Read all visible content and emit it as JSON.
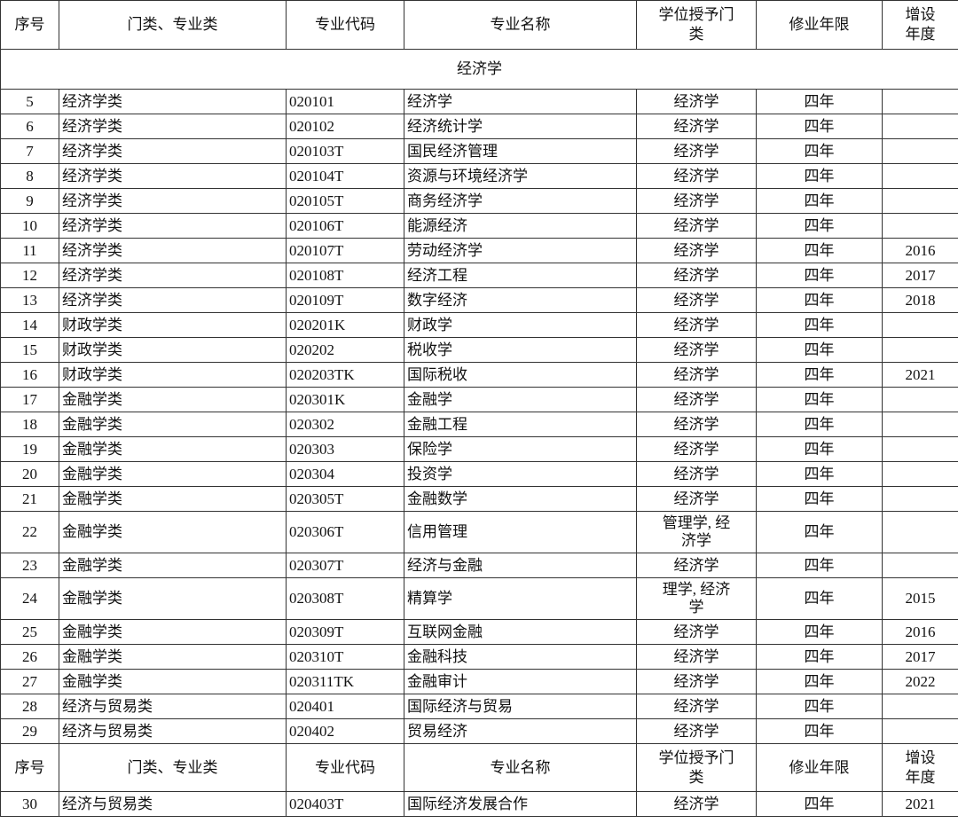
{
  "headers": [
    "序号",
    "门类、专业类",
    "专业代码",
    "专业名称",
    "学位授予门类",
    "修业年限",
    "增设年度"
  ],
  "section_title": "经济学",
  "rows_a": [
    [
      "5",
      "经济学类",
      "020101",
      "经济学",
      "经济学",
      "四年",
      ""
    ],
    [
      "6",
      "经济学类",
      "020102",
      "经济统计学",
      "经济学",
      "四年",
      ""
    ],
    [
      "7",
      "经济学类",
      "020103T",
      "国民经济管理",
      "经济学",
      "四年",
      ""
    ],
    [
      "8",
      "经济学类",
      "020104T",
      "资源与环境经济学",
      "经济学",
      "四年",
      ""
    ],
    [
      "9",
      "经济学类",
      "020105T",
      "商务经济学",
      "经济学",
      "四年",
      ""
    ],
    [
      "10",
      "经济学类",
      "020106T",
      "能源经济",
      "经济学",
      "四年",
      ""
    ],
    [
      "11",
      "经济学类",
      "020107T",
      "劳动经济学",
      "经济学",
      "四年",
      "2016"
    ],
    [
      "12",
      "经济学类",
      "020108T",
      "经济工程",
      "经济学",
      "四年",
      "2017"
    ],
    [
      "13",
      "经济学类",
      "020109T",
      "数字经济",
      "经济学",
      "四年",
      "2018"
    ],
    [
      "14",
      "财政学类",
      "020201K",
      "财政学",
      "经济学",
      "四年",
      ""
    ],
    [
      "15",
      "财政学类",
      "020202",
      "税收学",
      "经济学",
      "四年",
      ""
    ],
    [
      "16",
      "财政学类",
      "020203TK",
      "国际税收",
      "经济学",
      "四年",
      "2021"
    ],
    [
      "17",
      "金融学类",
      "020301K",
      "金融学",
      "经济学",
      "四年",
      ""
    ],
    [
      "18",
      "金融学类",
      "020302",
      "金融工程",
      "经济学",
      "四年",
      ""
    ],
    [
      "19",
      "金融学类",
      "020303",
      "保险学",
      "经济学",
      "四年",
      ""
    ],
    [
      "20",
      "金融学类",
      "020304",
      "投资学",
      "经济学",
      "四年",
      ""
    ],
    [
      "21",
      "金融学类",
      "020305T",
      "金融数学",
      "经济学",
      "四年",
      ""
    ],
    [
      "22",
      "金融学类",
      "020306T",
      "信用管理",
      "管理学, 经济学",
      "四年",
      ""
    ],
    [
      "23",
      "金融学类",
      "020307T",
      "经济与金融",
      "经济学",
      "四年",
      ""
    ],
    [
      "24",
      "金融学类",
      "020308T",
      "精算学",
      "理学, 经济学",
      "四年",
      "2015"
    ],
    [
      "25",
      "金融学类",
      "020309T",
      "互联网金融",
      "经济学",
      "四年",
      "2016"
    ],
    [
      "26",
      "金融学类",
      "020310T",
      "金融科技",
      "经济学",
      "四年",
      "2017"
    ],
    [
      "27",
      "金融学类",
      "020311TK",
      "金融审计",
      "经济学",
      "四年",
      "2022"
    ],
    [
      "28",
      "经济与贸易类",
      "020401",
      "国际经济与贸易",
      "经济学",
      "四年",
      ""
    ],
    [
      "29",
      "经济与贸易类",
      "020402",
      "贸易经济",
      "经济学",
      "四年",
      ""
    ]
  ],
  "rows_b": [
    [
      "30",
      "经济与贸易类",
      "020403T",
      "国际经济发展合作",
      "经济学",
      "四年",
      "2021"
    ]
  ]
}
